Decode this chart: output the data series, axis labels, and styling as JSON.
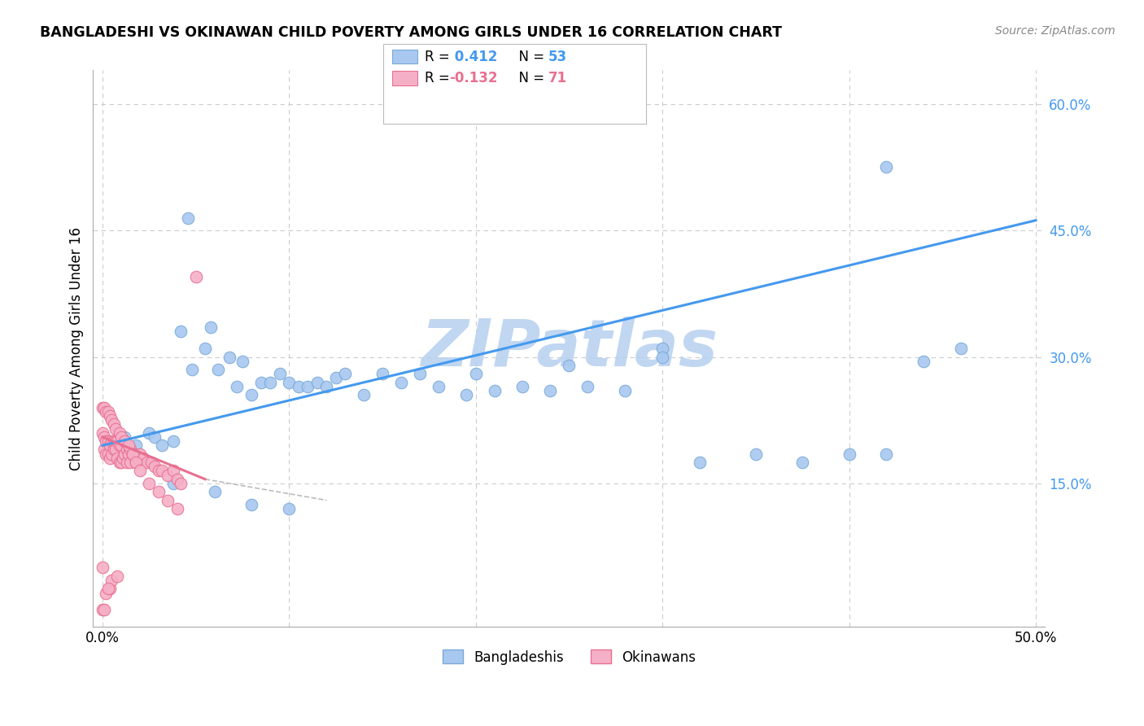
{
  "title": "BANGLADESHI VS OKINAWAN CHILD POVERTY AMONG GIRLS UNDER 16 CORRELATION CHART",
  "source": "Source: ZipAtlas.com",
  "ylabel": "Child Poverty Among Girls Under 16",
  "y_ticks_right": [
    0.15,
    0.3,
    0.45,
    0.6
  ],
  "y_tick_labels_right": [
    "15.0%",
    "30.0%",
    "45.0%",
    "60.0%"
  ],
  "xlim": [
    -0.005,
    0.505
  ],
  "ylim": [
    -0.02,
    0.64
  ],
  "legend_label1": "Bangladeshis",
  "legend_label2": "Okinawans",
  "blue_color": "#A8C8F0",
  "blue_edge_color": "#7AAAD8",
  "pink_color": "#F5B0C8",
  "pink_edge_color": "#E87090",
  "trend_blue_color": "#4499EE",
  "trend_pink_color": "#CC4466",
  "trend_pink_gray": "#BBBBBB",
  "watermark": "ZIPatlas",
  "watermark_color_r": 185,
  "watermark_color_g": 210,
  "watermark_color_b": 240,
  "background_color": "#FFFFFF",
  "grid_color": "#CCCCCC",
  "right_axis_color": "#4499EE",
  "blue_x": [
    0.012,
    0.018,
    0.025,
    0.028,
    0.032,
    0.038,
    0.042,
    0.048,
    0.055,
    0.058,
    0.062,
    0.068,
    0.072,
    0.075,
    0.08,
    0.085,
    0.09,
    0.095,
    0.1,
    0.105,
    0.11,
    0.115,
    0.12,
    0.125,
    0.13,
    0.14,
    0.15,
    0.16,
    0.17,
    0.18,
    0.195,
    0.21,
    0.225,
    0.24,
    0.26,
    0.28,
    0.3,
    0.32,
    0.35,
    0.375,
    0.4,
    0.42,
    0.44,
    0.46,
    0.038,
    0.06,
    0.08,
    0.1,
    0.2,
    0.25,
    0.3,
    0.42,
    0.046
  ],
  "blue_y": [
    0.205,
    0.195,
    0.21,
    0.205,
    0.195,
    0.2,
    0.33,
    0.285,
    0.31,
    0.335,
    0.285,
    0.3,
    0.265,
    0.295,
    0.255,
    0.27,
    0.27,
    0.28,
    0.27,
    0.265,
    0.265,
    0.27,
    0.265,
    0.275,
    0.28,
    0.255,
    0.28,
    0.27,
    0.28,
    0.265,
    0.255,
    0.26,
    0.265,
    0.26,
    0.265,
    0.26,
    0.31,
    0.175,
    0.185,
    0.175,
    0.185,
    0.185,
    0.295,
    0.31,
    0.15,
    0.14,
    0.125,
    0.12,
    0.28,
    0.29,
    0.3,
    0.525,
    0.465
  ],
  "pink_x": [
    0.0,
    0.0,
    0.0,
    0.001,
    0.001,
    0.001,
    0.002,
    0.002,
    0.002,
    0.003,
    0.003,
    0.004,
    0.004,
    0.004,
    0.005,
    0.005,
    0.005,
    0.006,
    0.006,
    0.007,
    0.007,
    0.008,
    0.008,
    0.008,
    0.009,
    0.009,
    0.01,
    0.01,
    0.011,
    0.012,
    0.013,
    0.013,
    0.014,
    0.015,
    0.015,
    0.016,
    0.017,
    0.018,
    0.019,
    0.02,
    0.022,
    0.024,
    0.026,
    0.028,
    0.03,
    0.032,
    0.035,
    0.038,
    0.04,
    0.042,
    0.0,
    0.001,
    0.002,
    0.003,
    0.003,
    0.004,
    0.005,
    0.006,
    0.007,
    0.009,
    0.01,
    0.012,
    0.014,
    0.016,
    0.018,
    0.02,
    0.025,
    0.03,
    0.035,
    0.04,
    0.05
  ],
  "pink_y": [
    0.21,
    0.05,
    0.0,
    0.205,
    0.19,
    0.0,
    0.2,
    0.185,
    0.02,
    0.2,
    0.185,
    0.195,
    0.18,
    0.025,
    0.2,
    0.185,
    0.035,
    0.2,
    0.19,
    0.2,
    0.19,
    0.2,
    0.18,
    0.04,
    0.195,
    0.175,
    0.195,
    0.175,
    0.18,
    0.185,
    0.19,
    0.175,
    0.185,
    0.19,
    0.175,
    0.185,
    0.185,
    0.175,
    0.18,
    0.185,
    0.18,
    0.175,
    0.175,
    0.17,
    0.165,
    0.165,
    0.16,
    0.165,
    0.155,
    0.15,
    0.24,
    0.24,
    0.235,
    0.235,
    0.025,
    0.23,
    0.225,
    0.22,
    0.215,
    0.21,
    0.205,
    0.2,
    0.195,
    0.185,
    0.175,
    0.165,
    0.15,
    0.14,
    0.13,
    0.12,
    0.395
  ],
  "blue_trend_x0": 0.0,
  "blue_trend_y0": 0.195,
  "blue_trend_x1": 0.5,
  "blue_trend_y1": 0.462,
  "pink_trend_x0": 0.0,
  "pink_trend_y0": 0.205,
  "pink_trend_x1": 0.055,
  "pink_trend_y1": 0.155
}
